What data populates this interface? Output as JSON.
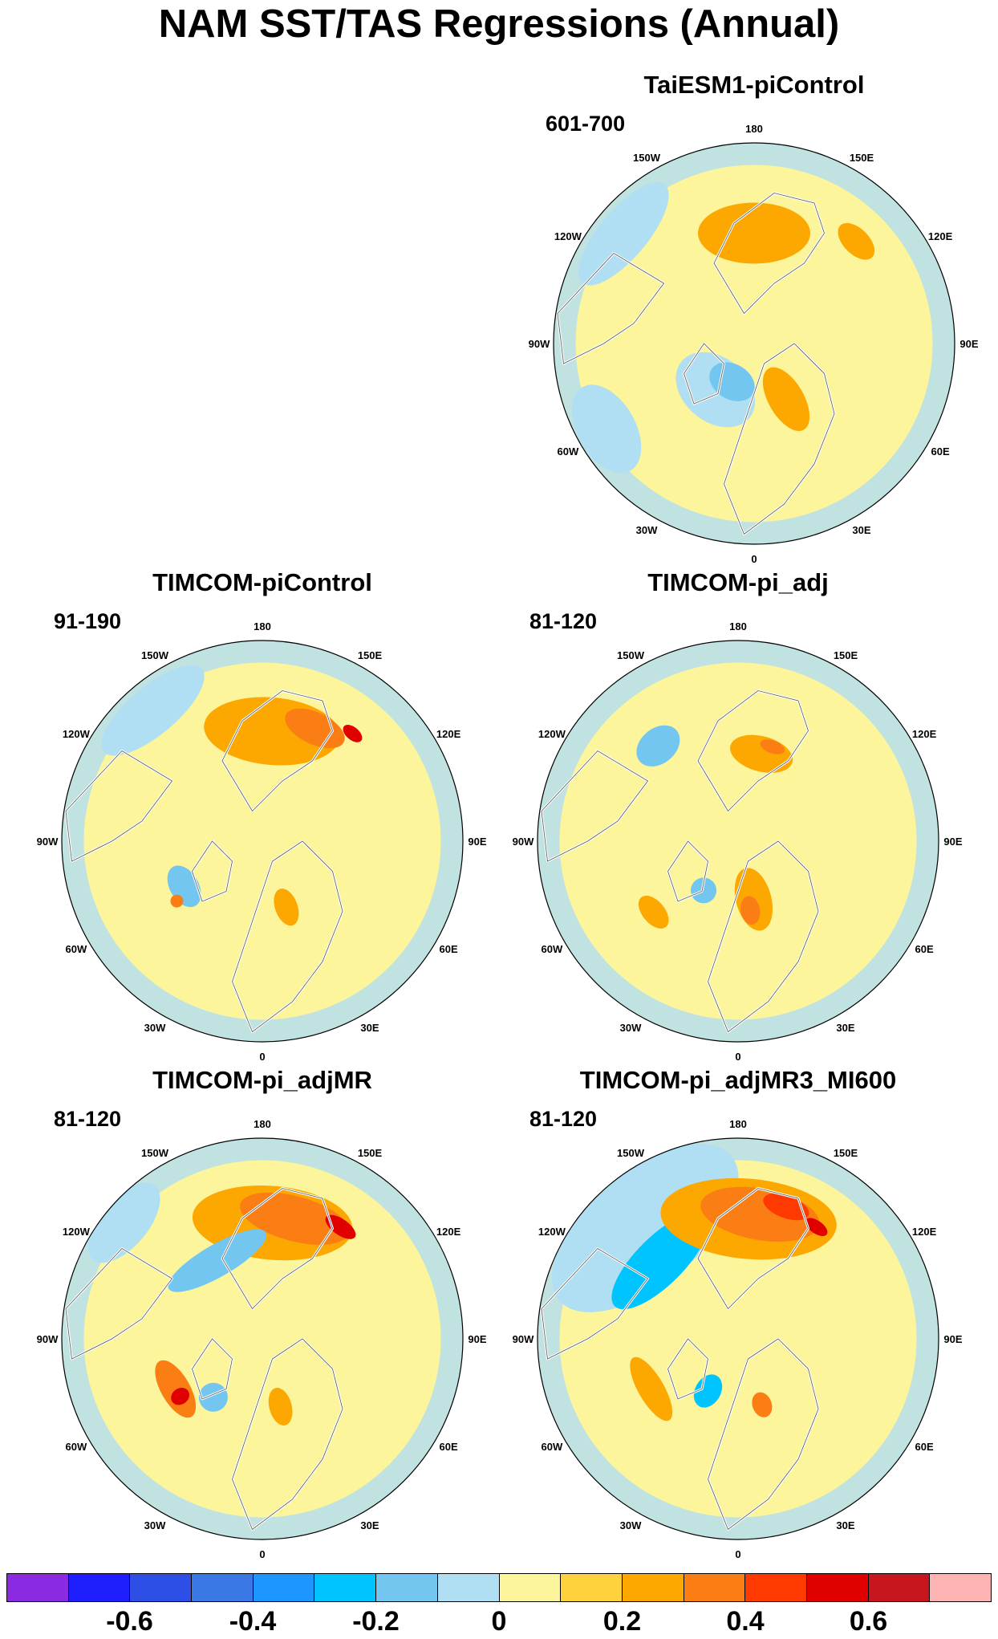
{
  "title": "NAM SST/TAS Regressions (Annual)",
  "lon_labels": [
    "180",
    "150E",
    "120E",
    "90E",
    "60E",
    "30E",
    "0",
    "30W",
    "60W",
    "90W",
    "120W",
    "150W"
  ],
  "panels": [
    {
      "id": "taiesm1-picontrol",
      "title": "TaiESM1-piControl",
      "period": "601-700",
      "features": [
        {
          "kind": "warm",
          "level": 0.2,
          "lon": 180,
          "r": 0.55,
          "rx": 70,
          "ry": 38
        },
        {
          "kind": "warm",
          "level": 0.2,
          "lon": 135,
          "r": 0.72,
          "rx": 28,
          "ry": 16
        },
        {
          "kind": "warm",
          "level": 0.2,
          "lon": 30,
          "r": 0.32,
          "rx": 22,
          "ry": 44
        },
        {
          "kind": "cold",
          "level": -0.1,
          "lon": 320,
          "r": 0.3,
          "rx": 55,
          "ry": 40
        },
        {
          "kind": "cold",
          "level": -0.1,
          "lon": 230,
          "r": 0.85,
          "rx": 80,
          "ry": 30
        },
        {
          "kind": "cold",
          "level": -0.1,
          "lon": 300,
          "r": 0.85,
          "rx": 60,
          "ry": 36
        },
        {
          "kind": "cold",
          "level": -0.2,
          "lon": 330,
          "r": 0.22,
          "rx": 30,
          "ry": 22
        }
      ]
    },
    {
      "id": "timcom-picontrol",
      "title": "TIMCOM-piControl",
      "period": "91-190",
      "features": [
        {
          "kind": "warm",
          "level": 0.2,
          "lon": 175,
          "r": 0.55,
          "rx": 85,
          "ry": 42
        },
        {
          "kind": "warm",
          "level": 0.3,
          "lon": 155,
          "r": 0.62,
          "rx": 40,
          "ry": 20
        },
        {
          "kind": "warm",
          "level": 0.5,
          "lon": 140,
          "r": 0.7,
          "rx": 14,
          "ry": 8
        },
        {
          "kind": "warm",
          "level": 0.2,
          "lon": 20,
          "r": 0.35,
          "rx": 14,
          "ry": 24
        },
        {
          "kind": "cold",
          "level": -0.1,
          "lon": 220,
          "r": 0.85,
          "rx": 80,
          "ry": 30
        },
        {
          "kind": "cold",
          "level": -0.2,
          "lon": 300,
          "r": 0.45,
          "rx": 28,
          "ry": 18
        },
        {
          "kind": "warm",
          "level": 0.3,
          "lon": 305,
          "r": 0.52,
          "rx": 8,
          "ry": 8
        }
      ]
    },
    {
      "id": "timcom-pi-adj",
      "title": "TIMCOM-pi_adj",
      "period": "81-120",
      "features": [
        {
          "kind": "warm",
          "level": 0.2,
          "lon": 165,
          "r": 0.45,
          "rx": 40,
          "ry": 22
        },
        {
          "kind": "warm",
          "level": 0.3,
          "lon": 160,
          "r": 0.5,
          "rx": 16,
          "ry": 8
        },
        {
          "kind": "warm",
          "level": 0.2,
          "lon": 15,
          "r": 0.3,
          "rx": 22,
          "ry": 40
        },
        {
          "kind": "warm",
          "level": 0.3,
          "lon": 10,
          "r": 0.35,
          "rx": 12,
          "ry": 18
        },
        {
          "kind": "cold",
          "level": -0.2,
          "lon": 220,
          "r": 0.62,
          "rx": 30,
          "ry": 22
        },
        {
          "kind": "cold",
          "level": -0.2,
          "lon": 325,
          "r": 0.3,
          "rx": 16,
          "ry": 16
        },
        {
          "kind": "warm",
          "level": 0.2,
          "lon": 310,
          "r": 0.55,
          "rx": 24,
          "ry": 14
        }
      ]
    },
    {
      "id": "timcom-pi-adjmr",
      "title": "TIMCOM-pi_adjMR",
      "period": "81-120",
      "features": [
        {
          "kind": "warm",
          "level": 0.2,
          "lon": 175,
          "r": 0.58,
          "rx": 100,
          "ry": 46
        },
        {
          "kind": "warm",
          "level": 0.3,
          "lon": 165,
          "r": 0.62,
          "rx": 70,
          "ry": 28
        },
        {
          "kind": "warm",
          "level": 0.5,
          "lon": 145,
          "r": 0.68,
          "rx": 22,
          "ry": 10
        },
        {
          "kind": "cold",
          "level": -0.2,
          "lon": 210,
          "r": 0.45,
          "rx": 70,
          "ry": 20
        },
        {
          "kind": "cold",
          "level": -0.1,
          "lon": 230,
          "r": 0.9,
          "rx": 60,
          "ry": 30
        },
        {
          "kind": "warm",
          "level": 0.3,
          "lon": 300,
          "r": 0.5,
          "rx": 40,
          "ry": 18
        },
        {
          "kind": "warm",
          "level": 0.5,
          "lon": 305,
          "r": 0.5,
          "rx": 10,
          "ry": 12
        },
        {
          "kind": "cold",
          "level": -0.2,
          "lon": 320,
          "r": 0.38,
          "rx": 18,
          "ry": 18
        },
        {
          "kind": "warm",
          "level": 0.2,
          "lon": 15,
          "r": 0.35,
          "rx": 14,
          "ry": 24
        }
      ]
    },
    {
      "id": "timcom-pi-adjmr3-mi600",
      "title": "TIMCOM-pi_adjMR3_MI600",
      "period": "81-120",
      "features": [
        {
          "kind": "cold",
          "level": -0.1,
          "lon": 220,
          "r": 0.72,
          "rx": 140,
          "ry": 70
        },
        {
          "kind": "cold",
          "level": -0.3,
          "lon": 225,
          "r": 0.55,
          "rx": 80,
          "ry": 30
        },
        {
          "kind": "warm",
          "level": 0.2,
          "lon": 175,
          "r": 0.6,
          "rx": 110,
          "ry": 50
        },
        {
          "kind": "warm",
          "level": 0.3,
          "lon": 170,
          "r": 0.63,
          "rx": 75,
          "ry": 32
        },
        {
          "kind": "warm",
          "level": 0.4,
          "lon": 160,
          "r": 0.7,
          "rx": 30,
          "ry": 14
        },
        {
          "kind": "warm",
          "level": 0.6,
          "lon": 145,
          "r": 0.68,
          "rx": 16,
          "ry": 8
        },
        {
          "kind": "cold",
          "level": -0.3,
          "lon": 330,
          "r": 0.3,
          "rx": 16,
          "ry": 22
        },
        {
          "kind": "warm",
          "level": 0.2,
          "lon": 300,
          "r": 0.5,
          "rx": 45,
          "ry": 16
        },
        {
          "kind": "warm",
          "level": 0.3,
          "lon": 20,
          "r": 0.35,
          "rx": 12,
          "ry": 16
        }
      ]
    }
  ],
  "colorbar": {
    "colors": [
      "#8a2be2",
      "#1e1eff",
      "#2d4fe6",
      "#3a78e6",
      "#1e96ff",
      "#00c4ff",
      "#72c6f0",
      "#b0def2",
      "#fdf59c",
      "#fdd23c",
      "#fca800",
      "#fa7e14",
      "#ff3a00",
      "#e00000",
      "#c8161e",
      "#ffb4b4"
    ],
    "labels": [
      "-0.6",
      "-0.4",
      "-0.2",
      "0",
      "0.2",
      "0.4",
      "0.6"
    ],
    "label_values": [
      -0.6,
      -0.4,
      -0.2,
      0,
      0.2,
      0.4,
      0.6
    ],
    "range": [
      -0.8,
      0.8
    ]
  }
}
